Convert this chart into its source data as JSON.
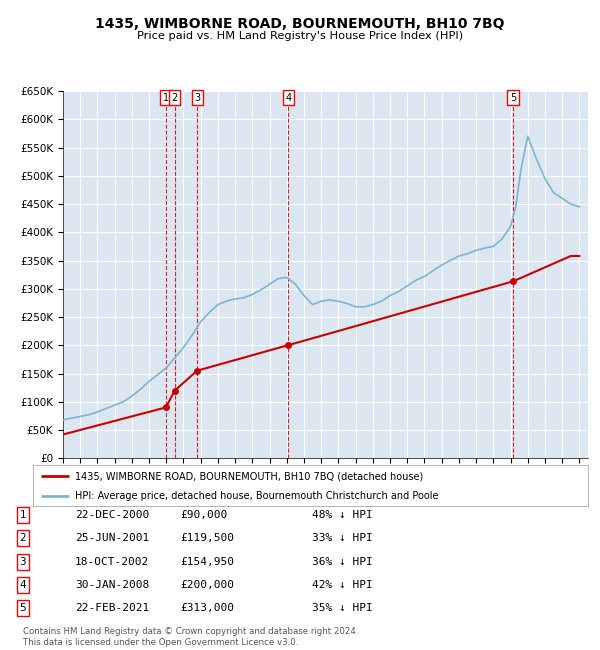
{
  "title": "1435, WIMBORNE ROAD, BOURNEMOUTH, BH10 7BQ",
  "subtitle": "Price paid vs. HM Land Registry's House Price Index (HPI)",
  "ylim": [
    0,
    650000
  ],
  "yticks": [
    0,
    50000,
    100000,
    150000,
    200000,
    250000,
    300000,
    350000,
    400000,
    450000,
    500000,
    550000,
    600000,
    650000
  ],
  "ytick_labels": [
    "£0",
    "£50K",
    "£100K",
    "£150K",
    "£200K",
    "£250K",
    "£300K",
    "£350K",
    "£400K",
    "£450K",
    "£500K",
    "£550K",
    "£600K",
    "£650K"
  ],
  "xlim_start": 1995.0,
  "xlim_end": 2025.5,
  "xticks": [
    1995,
    1996,
    1997,
    1998,
    1999,
    2000,
    2001,
    2002,
    2003,
    2004,
    2005,
    2006,
    2007,
    2008,
    2009,
    2010,
    2011,
    2012,
    2013,
    2014,
    2015,
    2016,
    2017,
    2018,
    2019,
    2020,
    2021,
    2022,
    2023,
    2024,
    2025
  ],
  "background_color": "#ffffff",
  "plot_bg_color": "#dce6f1",
  "grid_color": "#ffffff",
  "hpi_color": "#7fb3d3",
  "price_color": "#cc0000",
  "dashed_line_color": "#cc0000",
  "transactions": [
    {
      "num": 1,
      "year": 2000.98,
      "price": 90000
    },
    {
      "num": 2,
      "year": 2001.48,
      "price": 119500
    },
    {
      "num": 3,
      "year": 2002.79,
      "price": 154950
    },
    {
      "num": 4,
      "year": 2008.08,
      "price": 200000
    },
    {
      "num": 5,
      "year": 2021.14,
      "price": 313000
    }
  ],
  "hpi_years": [
    1995,
    1995.5,
    1996,
    1996.5,
    1997,
    1997.5,
    1998,
    1998.5,
    1999,
    1999.5,
    2000,
    2000.5,
    2001,
    2001.5,
    2002,
    2002.5,
    2003,
    2003.5,
    2004,
    2004.5,
    2005,
    2005.5,
    2006,
    2006.5,
    2007,
    2007.5,
    2008,
    2008.5,
    2009,
    2009.5,
    2010,
    2010.5,
    2011,
    2011.5,
    2012,
    2012.5,
    2013,
    2013.5,
    2014,
    2014.5,
    2015,
    2015.5,
    2016,
    2016.5,
    2017,
    2017.5,
    2018,
    2018.5,
    2019,
    2019.5,
    2020,
    2020.5,
    2021,
    2021.3,
    2021.6,
    2021.9,
    2022,
    2022.5,
    2023,
    2023.5,
    2024,
    2024.5,
    2025
  ],
  "hpi_values": [
    68000,
    71000,
    74000,
    77000,
    82000,
    88000,
    94000,
    100000,
    110000,
    122000,
    136000,
    148000,
    160000,
    178000,
    196000,
    218000,
    242000,
    258000,
    272000,
    278000,
    282000,
    284000,
    290000,
    298000,
    308000,
    318000,
    320000,
    308000,
    288000,
    272000,
    278000,
    280000,
    278000,
    274000,
    268000,
    268000,
    272000,
    278000,
    288000,
    295000,
    305000,
    315000,
    322000,
    332000,
    342000,
    350000,
    358000,
    362000,
    368000,
    372000,
    375000,
    388000,
    410000,
    445000,
    510000,
    555000,
    570000,
    530000,
    495000,
    470000,
    460000,
    450000,
    445000
  ],
  "price_years": [
    1995.0,
    2000.98,
    2001.48,
    2002.79,
    2008.08,
    2021.14,
    2024.5
  ],
  "price_values": [
    42000,
    90000,
    119500,
    154950,
    200000,
    313000,
    358000
  ],
  "legend_price_label": "1435, WIMBORNE ROAD, BOURNEMOUTH, BH10 7BQ (detached house)",
  "legend_hpi_label": "HPI: Average price, detached house, Bournemouth Christchurch and Poole",
  "footer": "Contains HM Land Registry data © Crown copyright and database right 2024.\nThis data is licensed under the Open Government Licence v3.0.",
  "table_rows": [
    {
      "num": 1,
      "date": "22-DEC-2000",
      "price": "£90,000",
      "pct": "48% ↓ HPI"
    },
    {
      "num": 2,
      "date": "25-JUN-2001",
      "price": "£119,500",
      "pct": "33% ↓ HPI"
    },
    {
      "num": 3,
      "date": "18-OCT-2002",
      "price": "£154,950",
      "pct": "36% ↓ HPI"
    },
    {
      "num": 4,
      "date": "30-JAN-2008",
      "price": "£200,000",
      "pct": "42% ↓ HPI"
    },
    {
      "num": 5,
      "date": "22-FEB-2021",
      "price": "£313,000",
      "pct": "35% ↓ HPI"
    }
  ]
}
